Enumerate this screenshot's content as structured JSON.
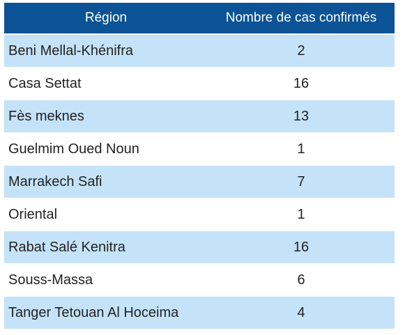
{
  "table": {
    "headers": {
      "region": "Région",
      "count": "Nombre de cas confirmés"
    },
    "rows": [
      {
        "region": "Beni Mellal-Khénifra",
        "count": "2"
      },
      {
        "region": "Casa Settat",
        "count": "16"
      },
      {
        "region": "Fès meknes",
        "count": "13"
      },
      {
        "region": "Guelmim Oued Noun",
        "count": "1"
      },
      {
        "region": "Marrakech Safi",
        "count": "7"
      },
      {
        "region": "Oriental",
        "count": "1"
      },
      {
        "region": "Rabat Salé Kenitra",
        "count": "16"
      },
      {
        "region": "Souss-Massa",
        "count": "6"
      },
      {
        "region": "Tanger Tetouan Al Hoceima",
        "count": "4"
      }
    ]
  },
  "colors": {
    "header_bg": "#0b5394",
    "header_text": "#ffffff",
    "row_shaded": "#c5e3f8",
    "row_plain": "#ffffff"
  }
}
